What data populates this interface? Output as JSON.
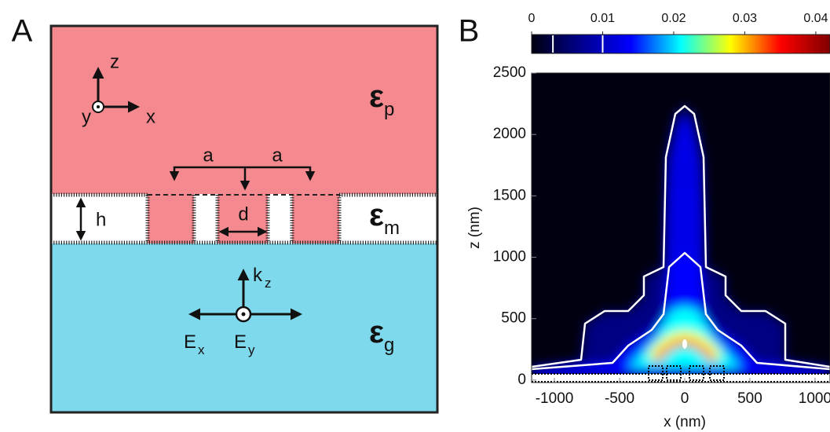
{
  "panel_labels": [
    "A",
    "B"
  ],
  "diagram": {
    "axes": {
      "z": "z",
      "y": "y",
      "x": "x"
    },
    "media": [
      {
        "symbol": "ε",
        "sub": "p"
      },
      {
        "symbol": "ε",
        "sub": "m"
      },
      {
        "symbol": "ε",
        "sub": "g"
      }
    ],
    "dims": {
      "a_left": "a",
      "a_right": "a",
      "h": "h",
      "d": "d"
    },
    "wave": {
      "k": "k",
      "k_sub": "z",
      "ex": "E",
      "ex_sub": "x",
      "ey": "E",
      "ey_sub": "y"
    }
  },
  "chart_data": {
    "type": "heatmap",
    "xlabel": "x (nm)",
    "ylabel": "z (nm)",
    "xlim": [
      -1175,
      1115
    ],
    "ylim": [
      -20,
      2500
    ],
    "xticks": [
      -1000,
      -500,
      0,
      500,
      1000
    ],
    "yticks": [
      0,
      500,
      1000,
      1500,
      2000,
      2500
    ],
    "colorbar": {
      "lim": [
        0,
        0.042
      ],
      "ticks": [
        0,
        0.01,
        0.02,
        0.03,
        0.04
      ],
      "colors": [
        "#000010",
        "#00008f",
        "#0000ff",
        "#00ffff",
        "#ffff00",
        "#ff0000",
        "#800000"
      ]
    },
    "contour_levels": [
      0.003,
      0.01
    ],
    "contour_color": "#ffffff"
  }
}
